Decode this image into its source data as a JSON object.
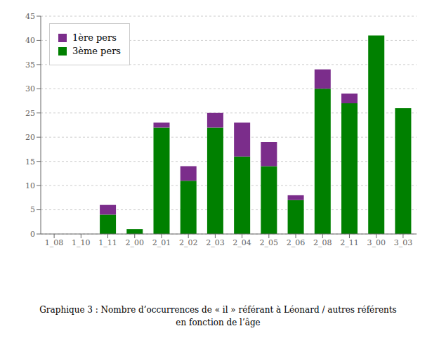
{
  "chart_data": {
    "type": "bar",
    "title": "Graphique 3 : Nombre d’occurrences de « il » référant à Léonard / autres référents\nen fonction de l’âge",
    "categories": [
      "1_08",
      "1_10",
      "1_11",
      "2_00",
      "2_01",
      "2_02",
      "2_03",
      "2_04",
      "2_05",
      "2_06",
      "2_08",
      "2_11",
      "3_00",
      "3_03"
    ],
    "series": [
      {
        "name": "3ème pers",
        "color": "#008000",
        "values": [
          0,
          0,
          4,
          1,
          22,
          11,
          22,
          16,
          14,
          7,
          30,
          27,
          41,
          26
        ]
      },
      {
        "name": "1ère pers",
        "color": "#7b2d8b",
        "values": [
          0,
          0,
          2,
          0,
          1,
          3,
          3,
          7,
          5,
          1,
          4,
          2,
          0,
          0
        ]
      }
    ],
    "stacked": true,
    "ylim": [
      0,
      45
    ],
    "yticks": [
      0,
      5,
      10,
      15,
      20,
      25,
      30,
      35,
      40,
      45
    ],
    "grid": true,
    "legend": "upper left"
  }
}
